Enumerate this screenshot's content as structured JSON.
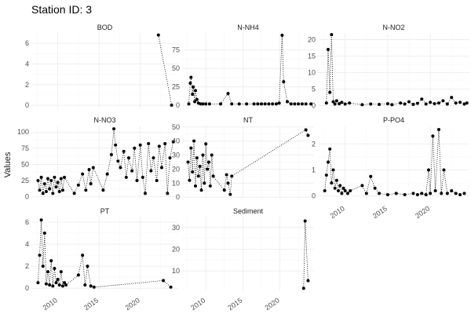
{
  "title": "Station ID: 3",
  "chart_data": {
    "type": "scatter",
    "title": "Station ID: 3",
    "xlabel": "",
    "ylabel": "Values",
    "grid": true,
    "x_ticks": [
      2010,
      2015,
      2020
    ],
    "xlim": [
      2006.8,
      2024.6
    ],
    "facets": [
      {
        "name": "BOD",
        "ylim": [
          -0.3,
          7.0
        ],
        "y_ticks": [
          0,
          2,
          4,
          6
        ],
        "x": [
          2022.2,
          2023.8
        ],
        "y": [
          6.8,
          0.0
        ]
      },
      {
        "name": "N-NH4",
        "ylim": [
          -4,
          98
        ],
        "y_ticks": [
          0,
          25,
          50,
          75
        ],
        "x": [
          2007.7,
          2007.9,
          2008.0,
          2008.2,
          2008.3,
          2008.5,
          2008.6,
          2008.8,
          2009.0,
          2009.3,
          2009.6,
          2010.0,
          2010.5,
          2012.0,
          2013.0,
          2013.5,
          2014.5,
          2015.5,
          2016.5,
          2017.0,
          2017.5,
          2018.0,
          2018.5,
          2019.0,
          2019.5,
          2019.9,
          2020.3,
          2020.5,
          2021.0,
          2021.5,
          2022.0,
          2022.5,
          2023.0,
          2023.5,
          2024.2
        ],
        "y": [
          2,
          30,
          38,
          15,
          25,
          5,
          20,
          8,
          3,
          2,
          2,
          2,
          2,
          2,
          16,
          2,
          2,
          2,
          2,
          2,
          2,
          2,
          2,
          2,
          2,
          3,
          95,
          32,
          5,
          2,
          2,
          2,
          2,
          2,
          2
        ]
      },
      {
        "name": "N-NO2",
        "ylim": [
          -0.8,
          22
        ],
        "y_ticks": [
          0,
          5,
          10,
          15,
          20
        ],
        "x": [
          2007.8,
          2008.0,
          2008.2,
          2008.4,
          2008.6,
          2008.8,
          2009.0,
          2009.3,
          2009.6,
          2010.0,
          2010.5,
          2012.0,
          2013.0,
          2014.0,
          2015.0,
          2015.5,
          2016.5,
          2017.0,
          2017.5,
          2018.0,
          2018.5,
          2019.0,
          2019.5,
          2020.0,
          2020.5,
          2021.0,
          2021.5,
          2022.0,
          2022.5,
          2023.0,
          2023.5,
          2024.0,
          2024.3
        ],
        "y": [
          0.8,
          17,
          4,
          21.5,
          1.2,
          0.5,
          1.5,
          0.6,
          1.0,
          0.5,
          0.8,
          0.3,
          0.5,
          0.4,
          0.6,
          0.3,
          0.8,
          0.5,
          1.2,
          0.4,
          0.7,
          2.0,
          0.5,
          1.0,
          0.6,
          0.8,
          1.5,
          0.5,
          2.5,
          0.8,
          1.0,
          0.5,
          0.8
        ]
      },
      {
        "name": "N-NO3",
        "ylim": [
          -3,
          110
        ],
        "y_ticks": [
          0,
          25,
          50,
          75,
          100
        ],
        "x": [
          2007.6,
          2007.8,
          2008.0,
          2008.2,
          2008.4,
          2008.6,
          2008.8,
          2009.0,
          2009.2,
          2009.4,
          2009.6,
          2009.8,
          2010.0,
          2010.2,
          2010.4,
          2010.6,
          2010.8,
          2012.0,
          2012.5,
          2013.0,
          2013.4,
          2013.8,
          2014.0,
          2014.3,
          2015.5,
          2016.0,
          2016.5,
          2016.8,
          2017.0,
          2017.3,
          2017.6,
          2018.0,
          2018.3,
          2018.6,
          2019.0,
          2019.3,
          2019.6,
          2020.0,
          2020.3,
          2020.6,
          2021.0,
          2021.3,
          2021.6,
          2022.0,
          2022.3,
          2022.6,
          2023.0,
          2023.3,
          2023.6,
          2024.0
        ],
        "y": [
          25,
          10,
          30,
          5,
          20,
          8,
          28,
          12,
          25,
          5,
          30,
          15,
          22,
          8,
          28,
          10,
          30,
          5,
          18,
          35,
          10,
          42,
          20,
          45,
          10,
          35,
          65,
          105,
          80,
          55,
          45,
          70,
          30,
          60,
          40,
          75,
          25,
          80,
          30,
          5,
          82,
          40,
          60,
          25,
          78,
          45,
          82,
          5,
          60,
          85
        ]
      },
      {
        "name": "NT",
        "ylim": [
          -1,
          51
        ],
        "y_ticks": [
          0,
          10,
          20,
          30,
          40,
          50
        ],
        "x": [
          2007.6,
          2007.8,
          2008.0,
          2008.2,
          2008.4,
          2008.6,
          2008.8,
          2009.0,
          2009.2,
          2009.4,
          2009.6,
          2009.8,
          2010.0,
          2010.2,
          2010.4,
          2010.6,
          2010.8,
          2011.0,
          2012.5,
          2012.8,
          2013.0,
          2013.3,
          2013.5,
          2023.5,
          2023.8
        ],
        "y": [
          25,
          12,
          35,
          18,
          40,
          8,
          28,
          15,
          22,
          5,
          30,
          10,
          38,
          20,
          25,
          8,
          30,
          15,
          5,
          16,
          10,
          2,
          15,
          48,
          44
        ]
      },
      {
        "name": "P-PO4",
        "ylim": [
          -0.1,
          2.7
        ],
        "y_ticks": [
          0,
          1,
          2
        ],
        "x": [
          2007.6,
          2007.8,
          2008.0,
          2008.2,
          2008.4,
          2008.6,
          2008.8,
          2009.0,
          2009.2,
          2009.4,
          2009.6,
          2009.8,
          2010.0,
          2010.3,
          2010.6,
          2012.0,
          2012.5,
          2013.0,
          2013.5,
          2014.0,
          2015.0,
          2016.0,
          2017.0,
          2018.0,
          2018.5,
          2019.0,
          2019.5,
          2019.8,
          2020.0,
          2020.3,
          2020.6,
          2021.0,
          2021.3,
          2021.6,
          2022.0,
          2022.5,
          2023.0,
          2023.5,
          2024.0
        ],
        "y": [
          0.2,
          0.8,
          1.3,
          1.8,
          0.5,
          1.0,
          0.3,
          0.6,
          0.2,
          0.4,
          0.1,
          0.3,
          0.2,
          0.1,
          0.2,
          0.4,
          0.1,
          0.75,
          0.3,
          0.1,
          0.05,
          0.1,
          0.05,
          0.1,
          0.05,
          0.1,
          0.05,
          1.0,
          0.1,
          2.3,
          0.2,
          2.55,
          0.1,
          1.0,
          0.1,
          0.2,
          0.1,
          0.05,
          0.1
        ]
      },
      {
        "name": "PT",
        "ylim": [
          -0.2,
          6.5
        ],
        "y_ticks": [
          0,
          2,
          4,
          6
        ],
        "x": [
          2007.6,
          2007.8,
          2008.0,
          2008.2,
          2008.4,
          2008.6,
          2008.8,
          2009.0,
          2009.2,
          2009.4,
          2009.6,
          2009.8,
          2010.0,
          2010.2,
          2010.4,
          2010.6,
          2010.8,
          2011.0,
          2012.5,
          2013.0,
          2013.3,
          2013.6,
          2014.0,
          2014.4,
          2022.8,
          2023.7
        ],
        "y": [
          0.5,
          3.0,
          6.2,
          2.0,
          5.0,
          0.4,
          1.5,
          0.3,
          2.5,
          0.2,
          1.8,
          0.5,
          0.8,
          0.3,
          1.5,
          0.2,
          0.5,
          0.3,
          1.2,
          3.0,
          0.3,
          2.0,
          0.2,
          0.1,
          0.7,
          0.1
        ]
      },
      {
        "name": "Sediment",
        "ylim": [
          1,
          35
        ],
        "y_ticks": [
          10,
          20,
          30
        ],
        "x": [
          2023.2,
          2023.4,
          2023.8
        ],
        "y": [
          2,
          33,
          5.5
        ]
      }
    ]
  }
}
